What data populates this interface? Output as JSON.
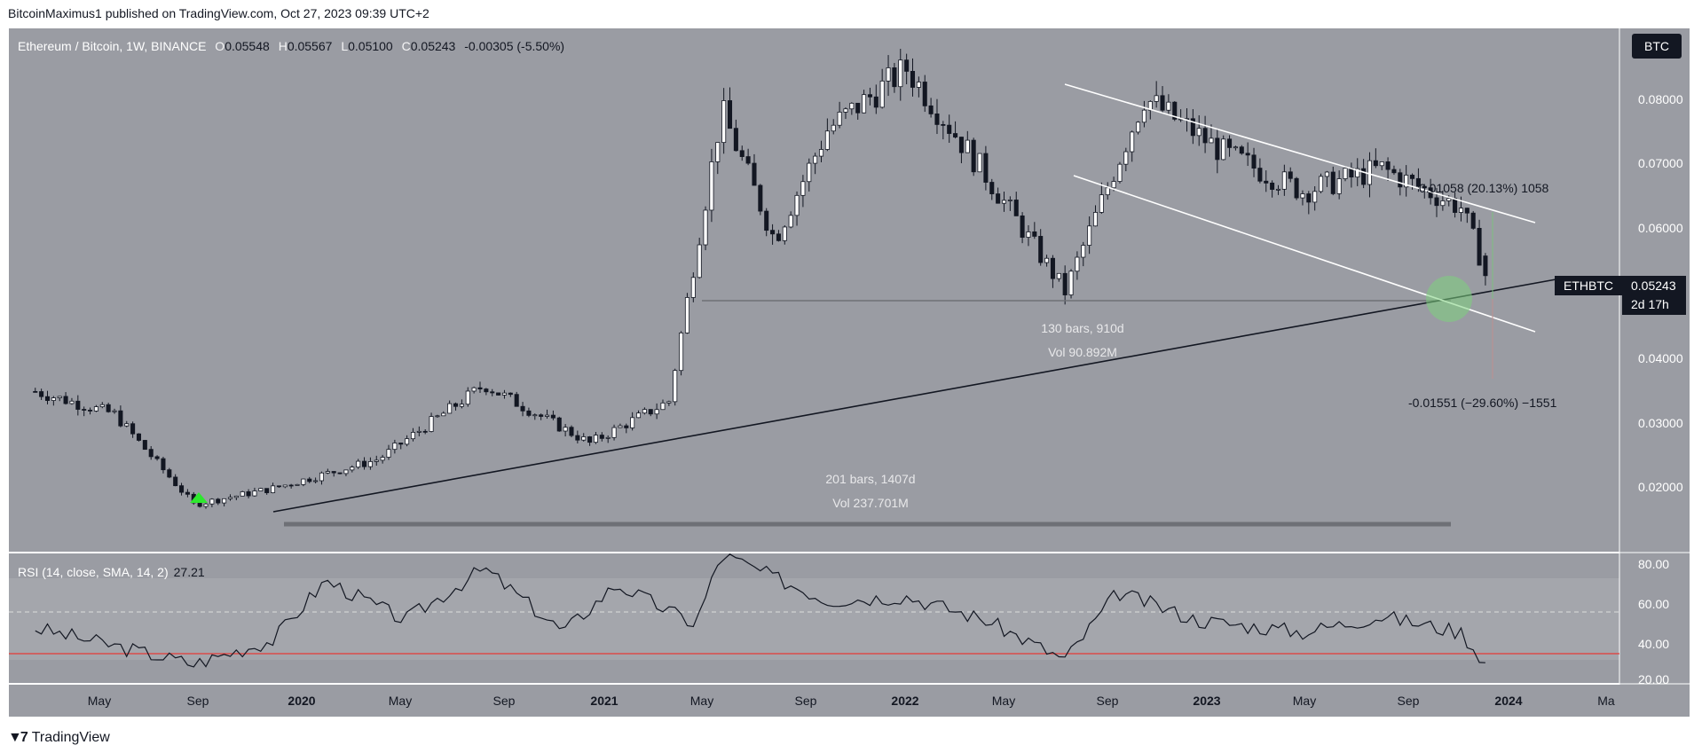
{
  "header": {
    "published": "BitcoinMaximus1 published on TradingView.com, Oct 27, 2023 09:39 UTC+2"
  },
  "legend": {
    "symbol": "Ethereum / Bitcoin, 1W, BINANCE",
    "o_label": "O",
    "o": "0.05548",
    "h_label": "H",
    "h": "0.05567",
    "l_label": "L",
    "l": "0.05100",
    "c_label": "C",
    "c": "0.05243",
    "change": "-0.00305 (-5.50%)"
  },
  "currency_badge": "BTC",
  "price_tag": {
    "ticker": "ETHBTC",
    "price": "0.05243",
    "countdown": "2d 17h"
  },
  "price_axis": [
    "0.08000",
    "0.07000",
    "0.06000",
    "0.04000",
    "0.03000",
    "0.02000"
  ],
  "rsi": {
    "label": "RSI (14, close, SMA, 14, 2)",
    "value": "27.21",
    "axis": [
      "80.00",
      "60.00",
      "40.00",
      "20.00"
    ]
  },
  "time_axis": [
    "May",
    "Sep",
    "2020",
    "May",
    "Sep",
    "2021",
    "May",
    "Sep",
    "2022",
    "May",
    "Sep",
    "2023",
    "May",
    "Sep",
    "2024",
    "Ma"
  ],
  "annotations": {
    "range1_bars": "130 bars, 910d",
    "range1_vol": "Vol 90.892M",
    "range2_bars": "201 bars, 1407d",
    "range2_vol": "Vol 237.701M",
    "up_measure": "0.01058 (20.13%) 1058",
    "down_measure": "-0.01551 (−29.60%) −1551"
  },
  "footer": {
    "brand": "TradingView"
  },
  "colors": {
    "bg": "#9a9ca3",
    "up": "#ffffff",
    "down": "#131722",
    "rsi_line": "#131722",
    "rsi_low": "#e53935",
    "green": "#5cd65c"
  },
  "chart_data": {
    "type": "candlestick",
    "title": "Ethereum / Bitcoin, 1W, BINANCE",
    "x_range": [
      "2019-02",
      "2024-03"
    ],
    "ylim": [
      0.012,
      0.09
    ],
    "key_points": [
      {
        "date": "2019-03",
        "price": 0.0345
      },
      {
        "date": "2019-06",
        "price": 0.031
      },
      {
        "date": "2019-09",
        "price": 0.017
      },
      {
        "date": "2019-12",
        "price": 0.0195
      },
      {
        "date": "2020-04",
        "price": 0.024
      },
      {
        "date": "2020-08",
        "price": 0.0355
      },
      {
        "date": "2020-12",
        "price": 0.0265
      },
      {
        "date": "2021-03",
        "price": 0.033
      },
      {
        "date": "2021-05",
        "price": 0.078
      },
      {
        "date": "2021-07",
        "price": 0.058
      },
      {
        "date": "2021-09",
        "price": 0.075
      },
      {
        "date": "2021-12",
        "price": 0.0845
      },
      {
        "date": "2022-03",
        "price": 0.068
      },
      {
        "date": "2022-06",
        "price": 0.05
      },
      {
        "date": "2022-09",
        "price": 0.08
      },
      {
        "date": "2022-12",
        "price": 0.0715
      },
      {
        "date": "2023-03",
        "price": 0.0655
      },
      {
        "date": "2023-06",
        "price": 0.069
      },
      {
        "date": "2023-09",
        "price": 0.063
      },
      {
        "date": "2023-10",
        "price": 0.0524
      }
    ],
    "rsi": [
      {
        "date": "2019-03",
        "value": 46
      },
      {
        "date": "2019-09",
        "value": 28
      },
      {
        "date": "2019-12",
        "value": 40
      },
      {
        "date": "2020-02",
        "value": 70
      },
      {
        "date": "2020-05",
        "value": 50
      },
      {
        "date": "2020-08",
        "value": 76
      },
      {
        "date": "2020-11",
        "value": 44
      },
      {
        "date": "2021-01",
        "value": 68
      },
      {
        "date": "2021-04",
        "value": 48
      },
      {
        "date": "2021-05",
        "value": 83
      },
      {
        "date": "2021-09",
        "value": 60
      },
      {
        "date": "2021-12",
        "value": 62
      },
      {
        "date": "2022-03",
        "value": 50
      },
      {
        "date": "2022-06",
        "value": 30
      },
      {
        "date": "2022-08",
        "value": 64
      },
      {
        "date": "2022-11",
        "value": 50
      },
      {
        "date": "2023-03",
        "value": 44
      },
      {
        "date": "2023-06",
        "value": 52
      },
      {
        "date": "2023-09",
        "value": 44
      },
      {
        "date": "2023-10",
        "value": 27.21
      }
    ],
    "rsi_ylim": [
      18,
      84
    ]
  }
}
